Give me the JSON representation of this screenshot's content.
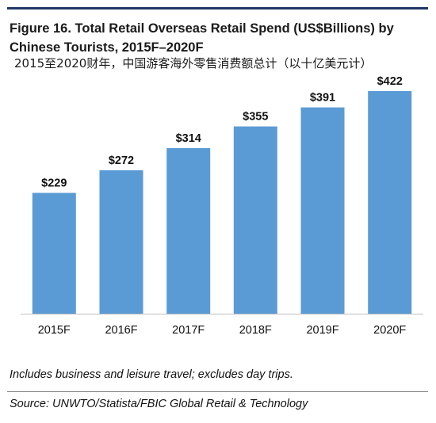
{
  "header": {
    "title": "Figure 16. Total Retail Overseas Retail Spend (US$Billions) by Chinese Tourists, 2015F–2020F",
    "subtitle": "2015至2020财年，中国游客海外零售消费额总计（以十亿美元计）"
  },
  "chart_data": {
    "type": "bar",
    "categories": [
      "2015F",
      "2016F",
      "2017F",
      "2018F",
      "2019F",
      "2020F"
    ],
    "values": [
      229,
      272,
      314,
      355,
      391,
      422
    ],
    "data_labels": [
      "$229",
      "$272",
      "$314",
      "$355",
      "$391",
      "$422"
    ],
    "ylim": [
      0,
      450
    ],
    "grid": false,
    "legend": "none",
    "bar_color": "#5b9bd5",
    "axis_color": "#bfbfbf"
  },
  "footer": {
    "note": "Includes business and leisure travel; excludes day trips.",
    "source": "Source: UNWTO/Statista/FBIC Global Retail & Technology"
  },
  "colors": {
    "title_rule": "#1f3864",
    "bottom_rule": "#7f7f7f"
  }
}
